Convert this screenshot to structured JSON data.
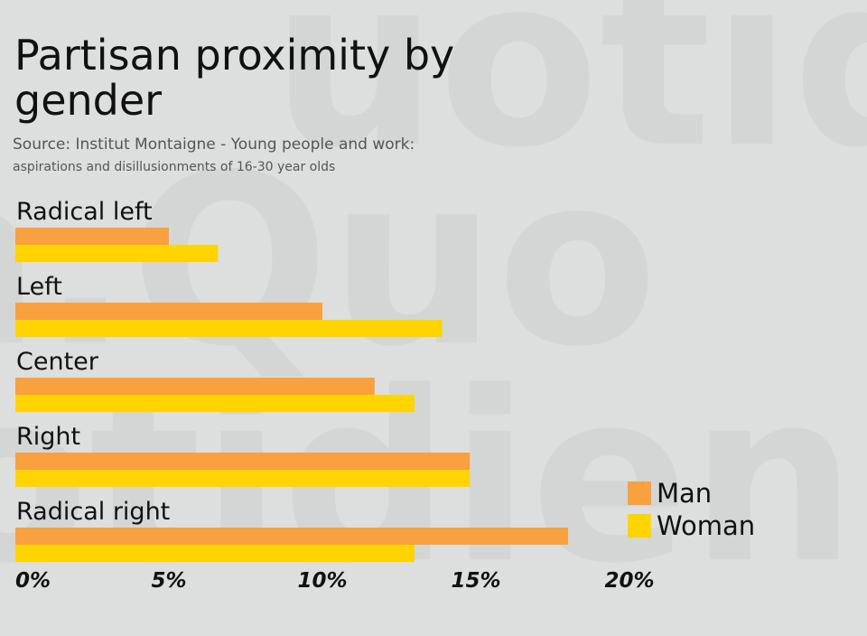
{
  "title": "Partisan proximity by gender",
  "source_line1": "Source: Institut Montaigne - Young people and work:",
  "source_line2": "aspirations and disillusionments of 16-30 year olds",
  "colors": {
    "man": "#f9a03f",
    "woman": "#ffd400"
  },
  "chart_data": {
    "type": "bar",
    "orientation": "horizontal",
    "title": "Partisan proximity by gender",
    "categories": [
      "Radical left",
      "Left",
      "Center",
      "Right",
      "Radical right"
    ],
    "series": [
      {
        "name": "Man",
        "values": [
          5,
          10,
          11.7,
          14.8,
          18
        ]
      },
      {
        "name": "Woman",
        "values": [
          6.6,
          13.9,
          13,
          14.8,
          13
        ]
      }
    ],
    "xlim": [
      0,
      20
    ],
    "xticks": [
      "0%",
      "5%",
      "10%",
      "15%",
      "20%"
    ],
    "legend_position": "bottom-right",
    "grid": false
  },
  "legend": {
    "man_label": "Man",
    "woman_label": "Woman"
  }
}
